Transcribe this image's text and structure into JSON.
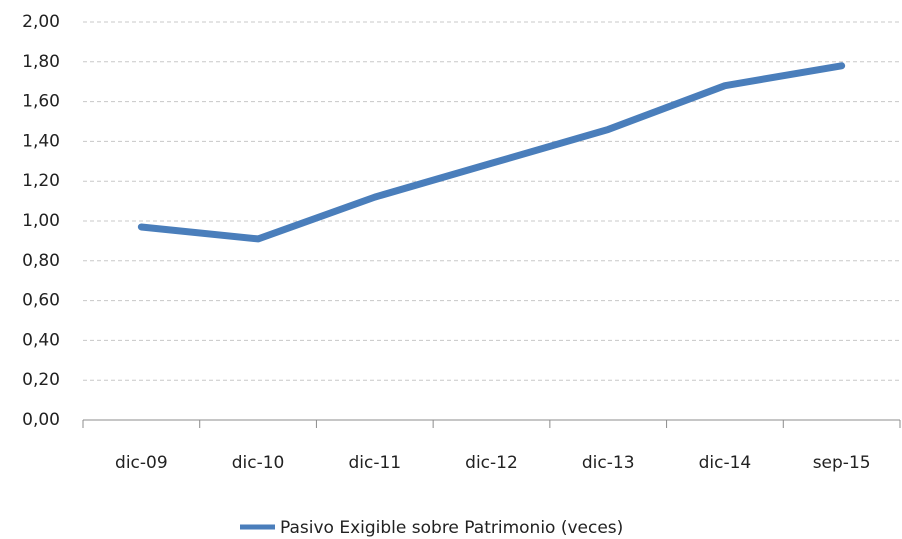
{
  "chart_data": {
    "type": "line",
    "categories": [
      "dic-09",
      "dic-10",
      "dic-11",
      "dic-12",
      "dic-13",
      "dic-14",
      "sep-15"
    ],
    "series": [
      {
        "name": "Pasivo Exigible sobre Patrimonio (veces)",
        "color": "#4a7ebb",
        "values": [
          0.97,
          0.91,
          1.12,
          1.29,
          1.46,
          1.68,
          1.78
        ]
      }
    ],
    "ylim": [
      0,
      2
    ],
    "yticks": [
      {
        "value": 0,
        "label": "0,00"
      },
      {
        "value": 0.2,
        "label": "0,20"
      },
      {
        "value": 0.4,
        "label": "0,40"
      },
      {
        "value": 0.6,
        "label": "0,60"
      },
      {
        "value": 0.8,
        "label": "0,80"
      },
      {
        "value": 1,
        "label": "1,00"
      },
      {
        "value": 1.2,
        "label": "1,20"
      },
      {
        "value": 1.4,
        "label": "1,40"
      },
      {
        "value": 1.6,
        "label": "1,60"
      },
      {
        "value": 1.8,
        "label": "1,80"
      },
      {
        "value": 2,
        "label": "2,00"
      }
    ],
    "grid": true,
    "legend": "bottom"
  }
}
